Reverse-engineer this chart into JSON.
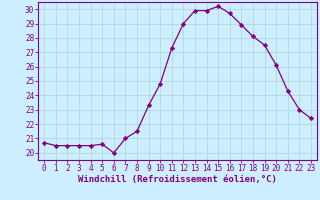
{
  "x": [
    0,
    1,
    2,
    3,
    4,
    5,
    6,
    7,
    8,
    9,
    10,
    11,
    12,
    13,
    14,
    15,
    16,
    17,
    18,
    19,
    20,
    21,
    22,
    23
  ],
  "y": [
    20.7,
    20.5,
    20.5,
    20.5,
    20.5,
    20.6,
    20.0,
    21.0,
    21.5,
    23.3,
    24.8,
    27.3,
    29.0,
    29.9,
    29.9,
    30.2,
    29.7,
    28.9,
    28.1,
    27.5,
    26.1,
    24.3,
    23.0,
    22.4
  ],
  "line_color": "#800080",
  "marker": "D",
  "marker_size": 2.2,
  "line_width": 0.9,
  "bg_color": "#cceeff",
  "grid_color": "#b0d8d8",
  "xlabel": "Windchill (Refroidissement éolien,°C)",
  "xlabel_color": "#800080",
  "tick_color": "#800080",
  "spine_color": "#800080",
  "ylim": [
    19.5,
    30.5
  ],
  "yticks": [
    20,
    21,
    22,
    23,
    24,
    25,
    26,
    27,
    28,
    29,
    30
  ],
  "xticks": [
    0,
    1,
    2,
    3,
    4,
    5,
    6,
    7,
    8,
    9,
    10,
    11,
    12,
    13,
    14,
    15,
    16,
    17,
    18,
    19,
    20,
    21,
    22,
    23
  ],
  "tick_fontsize": 5.5,
  "xlabel_fontsize": 6.5
}
